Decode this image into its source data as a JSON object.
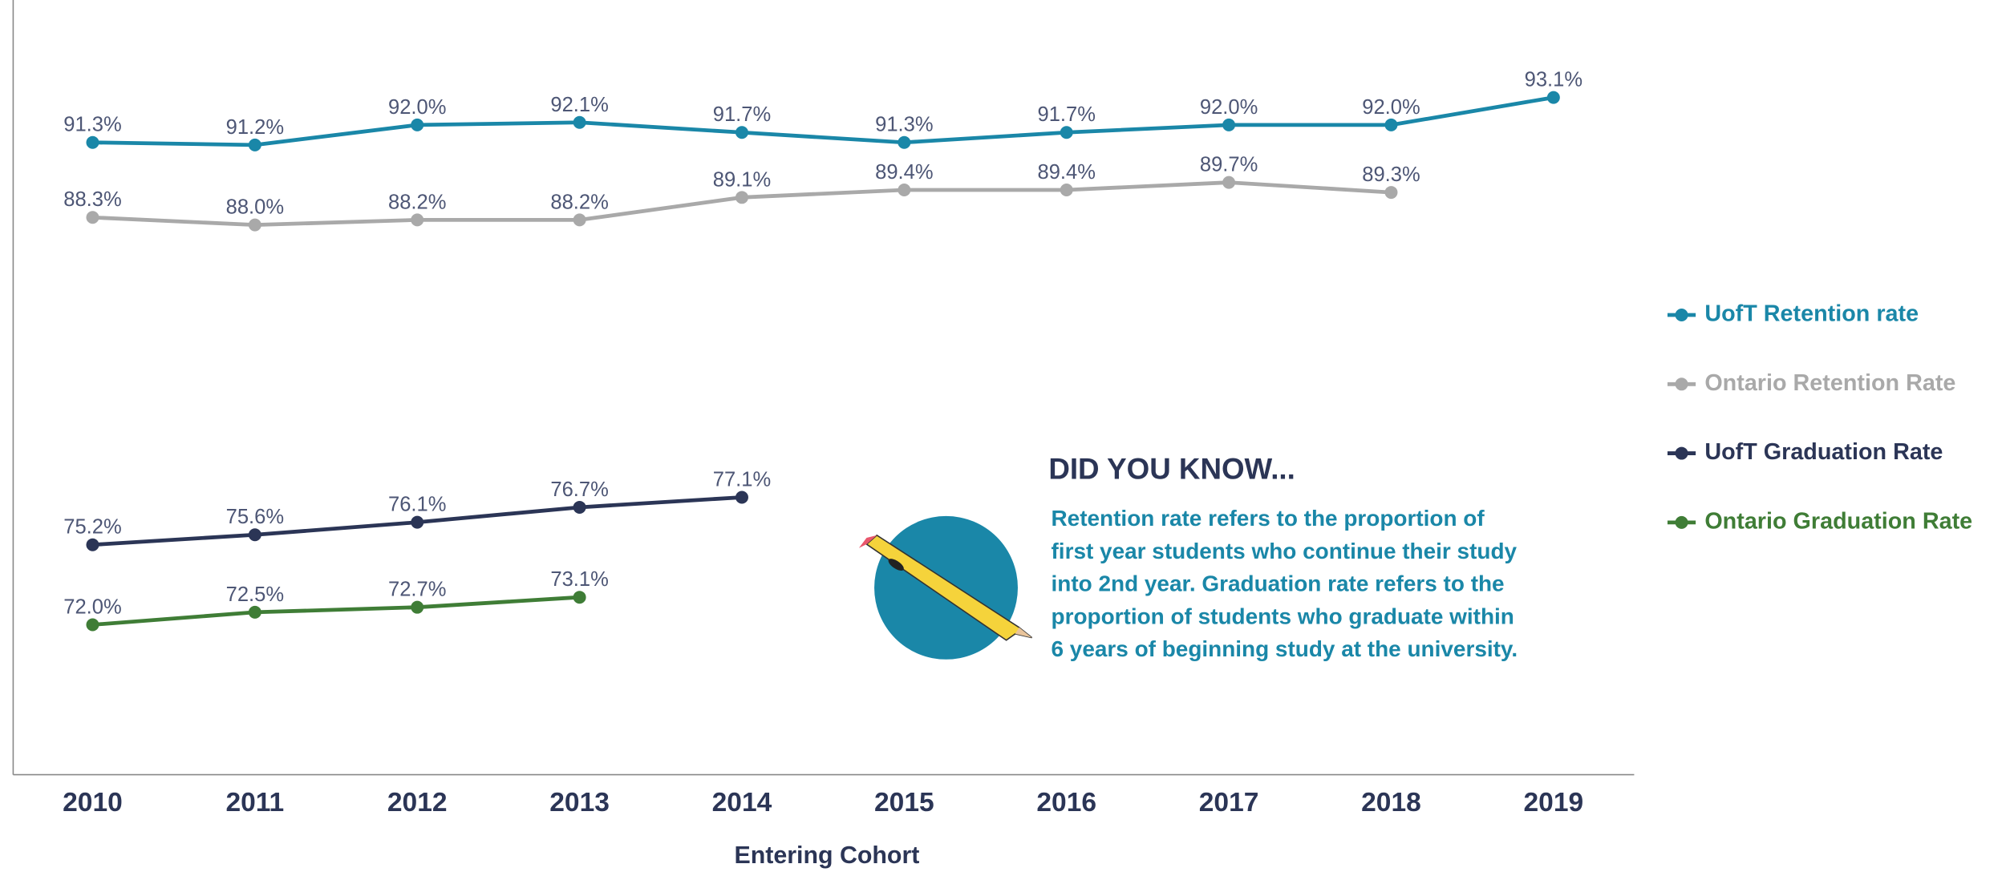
{
  "chart_data": {
    "type": "line",
    "x_label": "Entering Cohort",
    "categories": [
      "2010",
      "2011",
      "2012",
      "2013",
      "2014",
      "2015",
      "2016",
      "2017",
      "2018",
      "2019"
    ],
    "ylim": [
      66,
      97
    ],
    "series": [
      {
        "name": "UofT Retention rate",
        "color": "#1a87a8",
        "values": [
          91.3,
          91.2,
          92.0,
          92.1,
          91.7,
          91.3,
          91.7,
          92.0,
          92.0,
          93.1
        ],
        "value_labels": [
          "91.3%",
          "91.2%",
          "92.0%",
          "92.1%",
          "91.7%",
          "91.3%",
          "91.7%",
          "92.0%",
          "92.0%",
          "93.1%"
        ]
      },
      {
        "name": "Ontario Retention Rate",
        "color": "#a9a9a9",
        "values": [
          88.3,
          88.0,
          88.2,
          88.2,
          89.1,
          89.4,
          89.4,
          89.7,
          89.3,
          null
        ],
        "value_labels": [
          "88.3%",
          "88.0%",
          "88.2%",
          "88.2%",
          "89.1%",
          "89.4%",
          "89.4%",
          "89.7%",
          "89.3%",
          null
        ]
      },
      {
        "name": "UofT Graduation Rate",
        "color": "#2b3556",
        "values": [
          75.2,
          75.6,
          76.1,
          76.7,
          77.1,
          null,
          null,
          null,
          null,
          null
        ],
        "value_labels": [
          "75.2%",
          "75.6%",
          "76.1%",
          "76.7%",
          "77.1%",
          null,
          null,
          null,
          null,
          null
        ]
      },
      {
        "name": "Ontario Graduation Rate",
        "color": "#3f7d36",
        "values": [
          72.0,
          72.5,
          72.7,
          73.1,
          null,
          null,
          null,
          null,
          null,
          null
        ],
        "value_labels": [
          "72.0%",
          "72.5%",
          "72.7%",
          "73.1%",
          null,
          null,
          null,
          null,
          null,
          null
        ]
      }
    ],
    "annotation": {
      "title": "DID YOU KNOW...",
      "lines": [
        "Retention rate refers to the proportion of",
        "first year students who continue their study",
        "into 2nd year. Graduation rate refers to the",
        "proportion of students who graduate within",
        "6 years of beginning study at the university."
      ]
    },
    "legend": "right"
  }
}
